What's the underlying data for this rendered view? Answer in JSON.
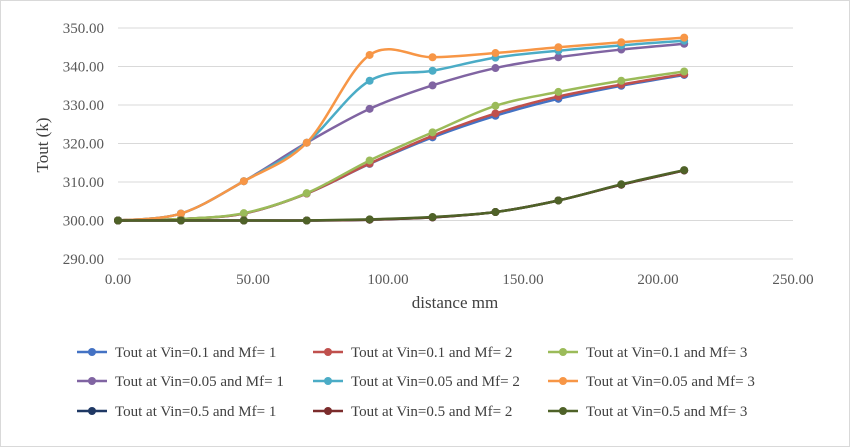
{
  "chart_data": {
    "type": "line",
    "xlabel": "distance mm",
    "ylabel": "Tout (k)",
    "xlim": [
      0,
      250
    ],
    "ylim": [
      290,
      350
    ],
    "x_ticks": [
      "0.00",
      "50.00",
      "100.00",
      "150.00",
      "200.00",
      "250.00"
    ],
    "y_ticks": [
      "290.00",
      "300.00",
      "310.00",
      "320.00",
      "330.00",
      "340.00",
      "350.00"
    ],
    "grid": "horizontal",
    "legend_position": "bottom",
    "x": [
      0,
      23.3,
      46.6,
      69.9,
      93.2,
      116.5,
      139.8,
      163.1,
      186.4,
      209.7
    ],
    "series": [
      {
        "name": "Tout at Vin=0.1 and Mf= 1",
        "color": "#4472c4",
        "values": [
          300,
          300.4,
          301.8,
          307.0,
          314.7,
          321.6,
          327.2,
          331.6,
          335.0,
          337.8
        ]
      },
      {
        "name": "Tout at Vin=0.1 and Mf= 2",
        "color": "#c0504d",
        "values": [
          300,
          300.4,
          301.8,
          307.0,
          314.8,
          322.0,
          327.8,
          332.2,
          335.3,
          338.0
        ]
      },
      {
        "name": "Tout at Vin=0.1 and Mf= 3",
        "color": "#9bbb59",
        "values": [
          300,
          300.4,
          301.9,
          307.1,
          315.6,
          322.9,
          329.8,
          333.4,
          336.3,
          338.7
        ]
      },
      {
        "name": "Tout at Vin=0.05 and Mf= 1",
        "color": "#8064a2",
        "values": [
          300,
          301.8,
          310.2,
          320.2,
          329.0,
          335.1,
          339.6,
          342.4,
          344.4,
          345.9
        ]
      },
      {
        "name": "Tout at Vin=0.05 and Mf= 2",
        "color": "#4bacc6",
        "values": [
          300,
          301.8,
          310.2,
          320.2,
          336.3,
          338.9,
          342.3,
          344.1,
          345.5,
          346.7
        ]
      },
      {
        "name": "Tout at Vin=0.05 and Mf= 3",
        "color": "#f79646",
        "values": [
          300,
          301.8,
          310.2,
          320.2,
          343.0,
          342.4,
          343.5,
          345.0,
          346.3,
          347.5
        ]
      },
      {
        "name": "Tout at Vin=0.5 and Mf= 1",
        "color": "#1f3864",
        "values": [
          300,
          300,
          300,
          300,
          300.2,
          300.8,
          302.2,
          305.2,
          309.3,
          313.0
        ]
      },
      {
        "name": "Tout at Vin=0.5 and Mf= 2",
        "color": "#7b2c2c",
        "values": [
          300,
          300,
          300,
          300,
          300.2,
          300.8,
          302.2,
          305.2,
          309.3,
          313.0
        ]
      },
      {
        "name": "Tout at Vin=0.5 and Mf= 3",
        "color": "#4f6228",
        "values": [
          300,
          300,
          300,
          300,
          300.3,
          300.9,
          302.2,
          305.2,
          309.4,
          313.1
        ]
      }
    ]
  }
}
